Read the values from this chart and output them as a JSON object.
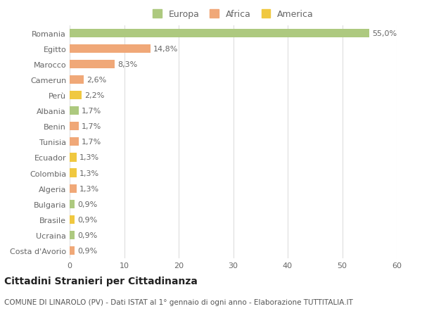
{
  "countries": [
    "Romania",
    "Egitto",
    "Marocco",
    "Camerun",
    "Perù",
    "Albania",
    "Benin",
    "Tunisia",
    "Ecuador",
    "Colombia",
    "Algeria",
    "Bulgaria",
    "Brasile",
    "Ucraina",
    "Costa d'Avorio"
  ],
  "values": [
    55.0,
    14.8,
    8.3,
    2.6,
    2.2,
    1.7,
    1.7,
    1.7,
    1.3,
    1.3,
    1.3,
    0.9,
    0.9,
    0.9,
    0.9
  ],
  "labels": [
    "55,0%",
    "14,8%",
    "8,3%",
    "2,6%",
    "2,2%",
    "1,7%",
    "1,7%",
    "1,7%",
    "1,3%",
    "1,3%",
    "1,3%",
    "0,9%",
    "0,9%",
    "0,9%",
    "0,9%"
  ],
  "continents": [
    "Europa",
    "Africa",
    "Africa",
    "Africa",
    "America",
    "Europa",
    "Africa",
    "Africa",
    "America",
    "America",
    "Africa",
    "Europa",
    "America",
    "Europa",
    "Africa"
  ],
  "colors": {
    "Europa": "#adc97f",
    "Africa": "#f0a878",
    "America": "#f0c840"
  },
  "legend_labels": [
    "Europa",
    "Africa",
    "America"
  ],
  "legend_colors": [
    "#adc97f",
    "#f0a878",
    "#f0c840"
  ],
  "title": "Cittadini Stranieri per Cittadinanza",
  "subtitle": "COMUNE DI LINAROLO (PV) - Dati ISTAT al 1° gennaio di ogni anno - Elaborazione TUTTITALIA.IT",
  "xlim": [
    0,
    60
  ],
  "xticks": [
    0,
    10,
    20,
    30,
    40,
    50,
    60
  ],
  "background_color": "#ffffff",
  "grid_color": "#dddddd",
  "bar_height": 0.55,
  "label_fontsize": 8,
  "tick_fontsize": 8,
  "title_fontsize": 10,
  "subtitle_fontsize": 7.5
}
